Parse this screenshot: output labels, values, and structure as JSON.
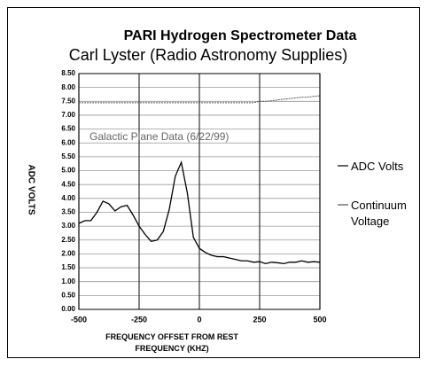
{
  "chart_data": {
    "type": "line",
    "title": "PARI Hydrogen Spectrometer Data",
    "subtitle": "Carl Lyster (Radio Astronomy Supplies)",
    "annotation": "Galactic Plane Data (6/22/99)",
    "y_label": "ADC VOLTS",
    "x_label": "FREQUENCY OFFSET FROM REST FREQUENCY (KHZ)",
    "x": [
      -500,
      -475,
      -450,
      -425,
      -400,
      -375,
      -350,
      -325,
      -300,
      -275,
      -250,
      -225,
      -200,
      -175,
      -150,
      -125,
      -100,
      -75,
      -50,
      -25,
      0,
      25,
      50,
      75,
      100,
      125,
      150,
      175,
      200,
      225,
      250,
      275,
      300,
      325,
      350,
      375,
      400,
      425,
      450,
      475,
      500
    ],
    "series": [
      {
        "name": "ADC Volts",
        "color": "#000000",
        "values": [
          3.1,
          3.2,
          3.2,
          3.5,
          3.9,
          3.8,
          3.55,
          3.7,
          3.75,
          3.4,
          3.0,
          2.7,
          2.45,
          2.5,
          2.8,
          3.6,
          4.8,
          5.3,
          4.2,
          2.6,
          2.2,
          2.05,
          1.95,
          1.9,
          1.9,
          1.85,
          1.8,
          1.75,
          1.75,
          1.7,
          1.72,
          1.65,
          1.7,
          1.68,
          1.65,
          1.7,
          1.7,
          1.75,
          1.7,
          1.72,
          1.7
        ]
      },
      {
        "name": "Continuum Voltage",
        "color": "#555555",
        "values": [
          7.45,
          7.45,
          7.45,
          7.45,
          7.45,
          7.45,
          7.45,
          7.45,
          7.45,
          7.45,
          7.45,
          7.45,
          7.45,
          7.45,
          7.45,
          7.45,
          7.45,
          7.45,
          7.45,
          7.45,
          7.45,
          7.45,
          7.45,
          7.45,
          7.45,
          7.45,
          7.45,
          7.45,
          7.45,
          7.45,
          7.5,
          7.5,
          7.52,
          7.55,
          7.58,
          7.6,
          7.62,
          7.65,
          7.65,
          7.68,
          7.7
        ]
      }
    ],
    "xlim": [
      -500,
      500
    ],
    "xticks": [
      -500,
      -250,
      0,
      250,
      500
    ],
    "ylim": [
      0,
      8.5
    ],
    "yticks": [
      {
        "value": 0,
        "label": "0.00"
      },
      {
        "value": 0.5,
        "label": "0.50"
      },
      {
        "value": 1,
        "label": "1.00"
      },
      {
        "value": 1.5,
        "label": "1.50"
      },
      {
        "value": 2,
        "label": "2.00"
      },
      {
        "value": 2.5,
        "label": "2.50"
      },
      {
        "value": 3,
        "label": "3.00"
      },
      {
        "value": 3.5,
        "label": "3.50"
      },
      {
        "value": 4,
        "label": "4.00"
      },
      {
        "value": 4.5,
        "label": "4.50"
      },
      {
        "value": 5,
        "label": "5.00"
      },
      {
        "value": 5.5,
        "label": "5.50"
      },
      {
        "value": 6,
        "label": "6.00"
      },
      {
        "value": 6.5,
        "label": "6.50"
      },
      {
        "value": 7,
        "label": "7.00"
      },
      {
        "value": 7.5,
        "label": "7.50"
      },
      {
        "value": 8,
        "label": "8.00"
      },
      {
        "value": 8.5,
        "label": "8.50"
      }
    ],
    "grid": true,
    "legend": "right"
  }
}
